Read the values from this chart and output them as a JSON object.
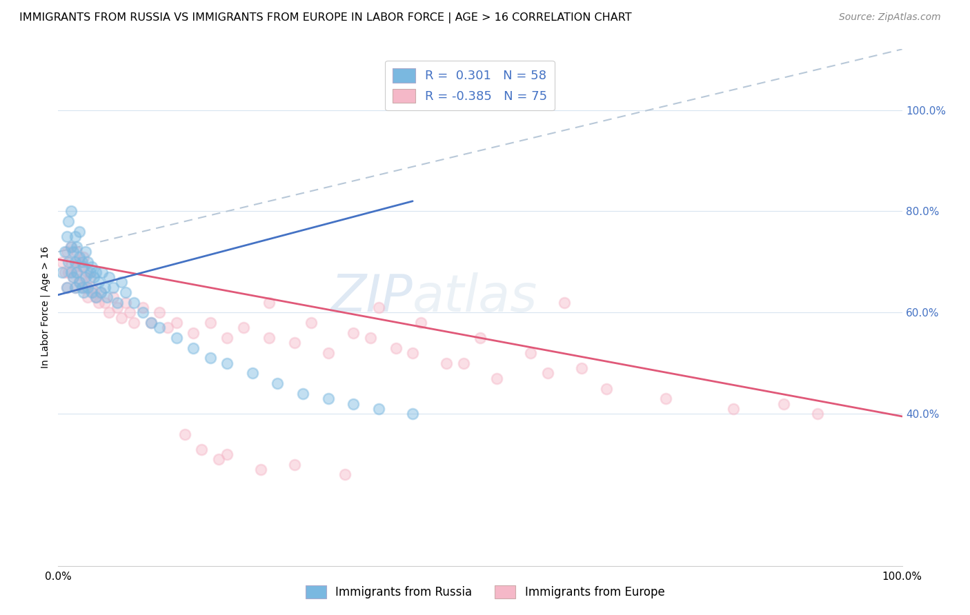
{
  "title": "IMMIGRANTS FROM RUSSIA VS IMMIGRANTS FROM EUROPE IN LABOR FORCE | AGE > 16 CORRELATION CHART",
  "source": "Source: ZipAtlas.com",
  "ylabel": "In Labor Force | Age > 16",
  "legend_label1": "Immigrants from Russia",
  "legend_label2": "Immigrants from Europe",
  "watermark_text": "ZIP",
  "watermark_text2": "atlas",
  "blue_scatter_color": "#7ab8e0",
  "pink_scatter_color": "#f5b8c8",
  "trend_blue_color": "#4472c4",
  "trend_pink_color": "#e05878",
  "trend_gray_color": "#b8c8d8",
  "grid_color": "#d8e4f0",
  "right_ytick_color": "#4472c4",
  "russia_x": [
    0.005,
    0.008,
    0.01,
    0.01,
    0.012,
    0.012,
    0.015,
    0.015,
    0.015,
    0.018,
    0.018,
    0.02,
    0.02,
    0.02,
    0.022,
    0.022,
    0.025,
    0.025,
    0.025,
    0.028,
    0.028,
    0.03,
    0.03,
    0.032,
    0.032,
    0.035,
    0.035,
    0.038,
    0.04,
    0.04,
    0.042,
    0.045,
    0.045,
    0.048,
    0.05,
    0.052,
    0.055,
    0.058,
    0.06,
    0.065,
    0.07,
    0.075,
    0.08,
    0.09,
    0.1,
    0.11,
    0.12,
    0.14,
    0.16,
    0.18,
    0.2,
    0.23,
    0.26,
    0.29,
    0.32,
    0.35,
    0.38,
    0.42
  ],
  "russia_y": [
    0.68,
    0.72,
    0.65,
    0.75,
    0.7,
    0.78,
    0.68,
    0.73,
    0.8,
    0.67,
    0.72,
    0.65,
    0.7,
    0.75,
    0.68,
    0.73,
    0.66,
    0.71,
    0.76,
    0.65,
    0.7,
    0.64,
    0.69,
    0.67,
    0.72,
    0.65,
    0.7,
    0.68,
    0.64,
    0.69,
    0.67,
    0.63,
    0.68,
    0.66,
    0.64,
    0.68,
    0.65,
    0.63,
    0.67,
    0.65,
    0.62,
    0.66,
    0.64,
    0.62,
    0.6,
    0.58,
    0.57,
    0.55,
    0.53,
    0.51,
    0.5,
    0.48,
    0.46,
    0.44,
    0.43,
    0.42,
    0.41,
    0.4
  ],
  "europe_x": [
    0.005,
    0.008,
    0.01,
    0.01,
    0.012,
    0.015,
    0.015,
    0.018,
    0.02,
    0.02,
    0.022,
    0.022,
    0.025,
    0.025,
    0.028,
    0.028,
    0.03,
    0.03,
    0.032,
    0.035,
    0.035,
    0.038,
    0.04,
    0.042,
    0.045,
    0.048,
    0.05,
    0.055,
    0.06,
    0.065,
    0.07,
    0.075,
    0.08,
    0.085,
    0.09,
    0.1,
    0.11,
    0.12,
    0.13,
    0.14,
    0.16,
    0.18,
    0.2,
    0.22,
    0.25,
    0.28,
    0.32,
    0.37,
    0.42,
    0.48,
    0.38,
    0.43,
    0.5,
    0.56,
    0.62,
    0.25,
    0.3,
    0.35,
    0.4,
    0.46,
    0.52,
    0.58,
    0.65,
    0.72,
    0.8,
    0.86,
    0.9,
    0.28,
    0.34,
    0.2,
    0.15,
    0.17,
    0.19,
    0.24,
    0.6
  ],
  "europe_y": [
    0.7,
    0.68,
    0.72,
    0.65,
    0.68,
    0.7,
    0.73,
    0.67,
    0.65,
    0.69,
    0.68,
    0.72,
    0.66,
    0.7,
    0.65,
    0.69,
    0.67,
    0.71,
    0.65,
    0.68,
    0.63,
    0.67,
    0.65,
    0.64,
    0.63,
    0.62,
    0.64,
    0.62,
    0.6,
    0.63,
    0.61,
    0.59,
    0.62,
    0.6,
    0.58,
    0.61,
    0.58,
    0.6,
    0.57,
    0.58,
    0.56,
    0.58,
    0.55,
    0.57,
    0.55,
    0.54,
    0.52,
    0.55,
    0.52,
    0.5,
    0.61,
    0.58,
    0.55,
    0.52,
    0.49,
    0.62,
    0.58,
    0.56,
    0.53,
    0.5,
    0.47,
    0.48,
    0.45,
    0.43,
    0.41,
    0.42,
    0.4,
    0.3,
    0.28,
    0.32,
    0.36,
    0.33,
    0.31,
    0.29,
    0.62
  ],
  "blue_trend_x0": 0.0,
  "blue_trend_y0": 0.635,
  "blue_trend_x1": 0.42,
  "blue_trend_y1": 0.82,
  "pink_trend_x0": 0.0,
  "pink_trend_y0": 0.705,
  "pink_trend_x1": 1.0,
  "pink_trend_y1": 0.395,
  "gray_trend_x0": 0.0,
  "gray_trend_y0": 0.72,
  "gray_trend_x1": 1.0,
  "gray_trend_y1": 1.12,
  "xlim_min": 0.0,
  "xlim_max": 1.0,
  "ylim_min": 0.1,
  "ylim_max": 1.12,
  "right_yticks": [
    0.4,
    0.6,
    0.8,
    1.0
  ],
  "right_ytick_labels": [
    "40.0%",
    "60.0%",
    "80.0%",
    "100.0%"
  ],
  "grid_yticks": [
    0.4,
    0.6,
    0.8,
    1.0
  ],
  "title_fontsize": 11.5,
  "source_fontsize": 10,
  "tick_fontsize": 11,
  "ylabel_fontsize": 10
}
